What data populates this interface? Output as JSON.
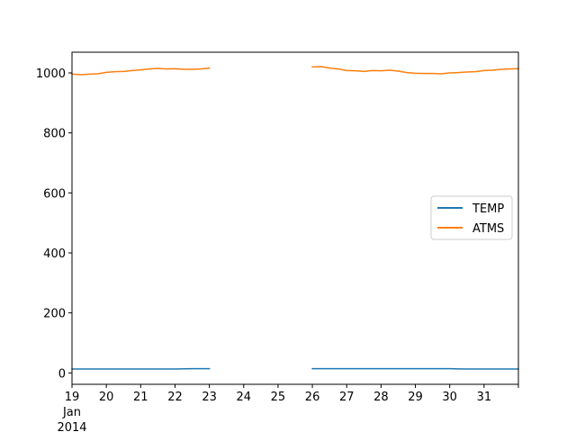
{
  "chart_data": {
    "type": "line",
    "title": "",
    "xlabel": "",
    "ylabel": "",
    "x_axis": {
      "kind": "date",
      "range": [
        "2014-01-19",
        "2014-02-01"
      ],
      "ticks": [
        {
          "date": "2014-01-19",
          "label": "19"
        },
        {
          "date": "2014-01-20",
          "label": "20"
        },
        {
          "date": "2014-01-21",
          "label": "21"
        },
        {
          "date": "2014-01-22",
          "label": "22"
        },
        {
          "date": "2014-01-23",
          "label": "23"
        },
        {
          "date": "2014-01-24",
          "label": "24"
        },
        {
          "date": "2014-01-25",
          "label": "25"
        },
        {
          "date": "2014-01-26",
          "label": "26"
        },
        {
          "date": "2014-01-27",
          "label": "27"
        },
        {
          "date": "2014-01-28",
          "label": "28"
        },
        {
          "date": "2014-01-29",
          "label": "29"
        },
        {
          "date": "2014-01-30",
          "label": "30"
        },
        {
          "date": "2014-01-31",
          "label": "31"
        }
      ],
      "secondary_labels": [
        "Jan",
        "2014"
      ]
    },
    "y_axis": {
      "range": [
        -38,
        1069
      ],
      "ticks": [
        0,
        200,
        400,
        600,
        800,
        1000
      ]
    },
    "grid": false,
    "legend": {
      "position": "center-right",
      "entries": [
        "TEMP",
        "ATMS"
      ]
    },
    "series": [
      {
        "name": "TEMP",
        "color": "#1f77b4",
        "points": [
          [
            "2014-01-19 00:00",
            13
          ],
          [
            "2014-01-19 12:00",
            13
          ],
          [
            "2014-01-20 00:00",
            13
          ],
          [
            "2014-01-20 12:00",
            13
          ],
          [
            "2014-01-21 00:00",
            13
          ],
          [
            "2014-01-21 12:00",
            13
          ],
          [
            "2014-01-22 00:00",
            13
          ],
          [
            "2014-01-22 12:00",
            14
          ],
          [
            "2014-01-23 00:00",
            14
          ],
          null,
          [
            "2014-01-26 00:00",
            14
          ],
          [
            "2014-01-26 12:00",
            14
          ],
          [
            "2014-01-27 00:00",
            14
          ],
          [
            "2014-01-27 12:00",
            14
          ],
          [
            "2014-01-28 00:00",
            14
          ],
          [
            "2014-01-28 12:00",
            14
          ],
          [
            "2014-01-29 00:00",
            14
          ],
          [
            "2014-01-29 12:00",
            14
          ],
          [
            "2014-01-30 00:00",
            14
          ],
          [
            "2014-01-30 12:00",
            13
          ],
          [
            "2014-01-31 00:00",
            13
          ],
          [
            "2014-01-31 12:00",
            13
          ],
          [
            "2014-02-01 00:00",
            13
          ]
        ]
      },
      {
        "name": "ATMS",
        "color": "#ff7f0e",
        "points": [
          [
            "2014-01-19 00:00",
            996
          ],
          [
            "2014-01-19 06:00",
            994
          ],
          [
            "2014-01-19 12:00",
            996
          ],
          [
            "2014-01-19 18:00",
            997
          ],
          [
            "2014-01-20 00:00",
            1002
          ],
          [
            "2014-01-20 06:00",
            1004
          ],
          [
            "2014-01-20 12:00",
            1005
          ],
          [
            "2014-01-20 18:00",
            1008
          ],
          [
            "2014-01-21 00:00",
            1010
          ],
          [
            "2014-01-21 06:00",
            1013
          ],
          [
            "2014-01-21 12:00",
            1015
          ],
          [
            "2014-01-21 18:00",
            1013
          ],
          [
            "2014-01-22 00:00",
            1014
          ],
          [
            "2014-01-22 06:00",
            1012
          ],
          [
            "2014-01-22 12:00",
            1012
          ],
          [
            "2014-01-22 18:00",
            1013
          ],
          [
            "2014-01-23 00:00",
            1016
          ],
          null,
          [
            "2014-01-26 00:00",
            1020
          ],
          [
            "2014-01-26 06:00",
            1021
          ],
          [
            "2014-01-26 12:00",
            1016
          ],
          [
            "2014-01-26 18:00",
            1013
          ],
          [
            "2014-01-27 00:00",
            1008
          ],
          [
            "2014-01-27 06:00",
            1007
          ],
          [
            "2014-01-27 12:00",
            1005
          ],
          [
            "2014-01-27 18:00",
            1008
          ],
          [
            "2014-01-28 00:00",
            1007
          ],
          [
            "2014-01-28 06:00",
            1009
          ],
          [
            "2014-01-28 12:00",
            1006
          ],
          [
            "2014-01-28 18:00",
            1001
          ],
          [
            "2014-01-29 00:00",
            999
          ],
          [
            "2014-01-29 06:00",
            998
          ],
          [
            "2014-01-29 12:00",
            998
          ],
          [
            "2014-01-29 18:00",
            997
          ],
          [
            "2014-01-30 00:00",
            1000
          ],
          [
            "2014-01-30 06:00",
            1001
          ],
          [
            "2014-01-30 12:00",
            1003
          ],
          [
            "2014-01-30 18:00",
            1004
          ],
          [
            "2014-01-31 00:00",
            1008
          ],
          [
            "2014-01-31 06:00",
            1009
          ],
          [
            "2014-01-31 12:00",
            1012
          ],
          [
            "2014-01-31 18:00",
            1013
          ],
          [
            "2014-02-01 00:00",
            1014
          ]
        ]
      }
    ]
  }
}
